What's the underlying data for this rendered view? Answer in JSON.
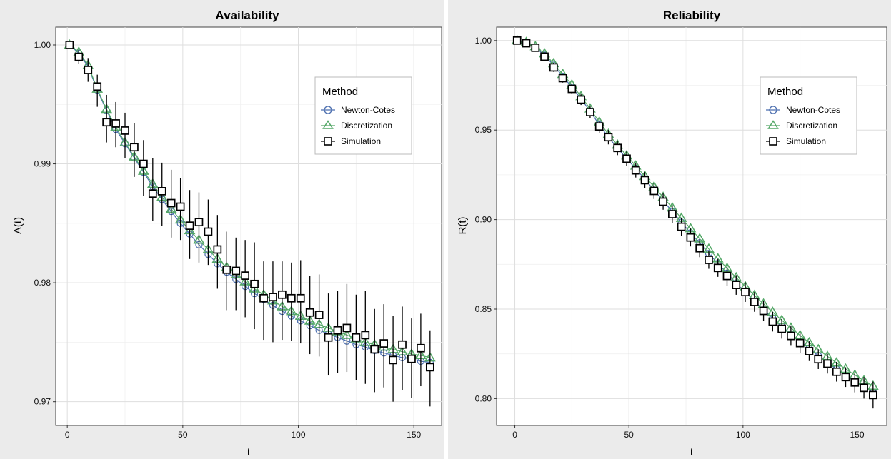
{
  "chart_data": [
    {
      "type": "line",
      "title": "Availability",
      "xlabel": "t",
      "ylabel": "A(t)",
      "xlim": [
        -5,
        162
      ],
      "ylim": [
        0.968,
        1.0015
      ],
      "xticks": [
        0,
        50,
        100,
        150
      ],
      "xtick_labels": [
        "0",
        "50",
        "100",
        "150"
      ],
      "yticks": [
        0.97,
        0.98,
        0.99,
        1.0
      ],
      "ytick_labels": [
        "0.97",
        "0.98",
        "0.99",
        "1.00"
      ],
      "grid": true,
      "legend": {
        "title": "Method",
        "position": "top-right",
        "entries": [
          "Newton-Cotes",
          "Discretization",
          "Simulation"
        ]
      },
      "x": [
        1,
        5,
        9,
        13,
        17,
        21,
        25,
        29,
        33,
        37,
        41,
        45,
        49,
        53,
        57,
        61,
        65,
        69,
        73,
        77,
        81,
        85,
        89,
        93,
        97,
        101,
        105,
        109,
        113,
        117,
        121,
        125,
        129,
        133,
        137,
        141,
        145,
        149,
        153,
        157
      ],
      "series": [
        {
          "name": "Newton-Cotes",
          "values": [
            1.0,
            0.9993,
            0.9982,
            0.9962,
            0.9945,
            0.9929,
            0.9917,
            0.9905,
            0.9893,
            0.9881,
            0.987,
            0.986,
            0.985,
            0.9841,
            0.9832,
            0.9824,
            0.9816,
            0.9809,
            0.9803,
            0.9797,
            0.9791,
            0.9786,
            0.9781,
            0.9776,
            0.9772,
            0.9768,
            0.9764,
            0.976,
            0.9757,
            0.9754,
            0.9751,
            0.9748,
            0.9746,
            0.9743,
            0.9741,
            0.9739,
            0.9737,
            0.9736,
            0.9734,
            0.9733
          ]
        },
        {
          "name": "Discretization",
          "values": [
            1.0,
            0.9994,
            0.9983,
            0.9963,
            0.9946,
            0.9931,
            0.9918,
            0.9906,
            0.9894,
            0.9883,
            0.9872,
            0.9862,
            0.9853,
            0.9844,
            0.9836,
            0.9828,
            0.982,
            0.9813,
            0.9807,
            0.9801,
            0.9795,
            0.979,
            0.9785,
            0.978,
            0.9776,
            0.9772,
            0.9768,
            0.9765,
            0.9762,
            0.9759,
            0.9756,
            0.9753,
            0.975,
            0.9748,
            0.9746,
            0.9744,
            0.9742,
            0.974,
            0.9739,
            0.9737
          ]
        },
        {
          "name": "Simulation",
          "values": [
            1.0,
            0.999,
            0.9979,
            0.9965,
            0.9935,
            0.9934,
            0.9928,
            0.9914,
            0.99,
            0.9875,
            0.9877,
            0.9867,
            0.9864,
            0.9848,
            0.9851,
            0.9843,
            0.9828,
            0.9811,
            0.981,
            0.9806,
            0.9799,
            0.9787,
            0.9788,
            0.979,
            0.9787,
            0.9787,
            0.9775,
            0.9773,
            0.9754,
            0.976,
            0.9762,
            0.9754,
            0.9756,
            0.9744,
            0.9749,
            0.9735,
            0.9748,
            0.9736,
            0.9745,
            0.9729
          ],
          "lower": [
            1.0,
            0.9984,
            0.9969,
            0.9948,
            0.9918,
            0.9914,
            0.9905,
            0.9889,
            0.9873,
            0.9852,
            0.9848,
            0.9838,
            0.9836,
            0.982,
            0.9817,
            0.9815,
            0.9795,
            0.9777,
            0.9777,
            0.9771,
            0.9761,
            0.9752,
            0.975,
            0.9752,
            0.9751,
            0.9749,
            0.974,
            0.9738,
            0.9722,
            0.9724,
            0.9725,
            0.9718,
            0.9715,
            0.9708,
            0.9712,
            0.97,
            0.971,
            0.9703,
            0.9713,
            0.9696
          ],
          "upper": [
            1.0,
            0.9996,
            0.9989,
            0.9975,
            0.9958,
            0.9952,
            0.9943,
            0.9934,
            0.992,
            0.9905,
            0.9901,
            0.9895,
            0.9888,
            0.9878,
            0.9876,
            0.987,
            0.9857,
            0.9843,
            0.9838,
            0.9836,
            0.9834,
            0.9818,
            0.9818,
            0.9818,
            0.9817,
            0.9819,
            0.9806,
            0.9807,
            0.9791,
            0.9793,
            0.9799,
            0.979,
            0.9793,
            0.9778,
            0.9782,
            0.9772,
            0.978,
            0.977,
            0.9774,
            0.976
          ]
        }
      ]
    },
    {
      "type": "line",
      "title": "Reliability",
      "xlabel": "t",
      "ylabel": "R(t)",
      "xlim": [
        -8,
        163
      ],
      "ylim": [
        0.785,
        1.0075
      ],
      "xticks": [
        0,
        50,
        100,
        150
      ],
      "xtick_labels": [
        "0",
        "50",
        "100",
        "150"
      ],
      "yticks": [
        0.8,
        0.85,
        0.9,
        0.95,
        1.0
      ],
      "ytick_labels": [
        "0.80",
        "0.85",
        "0.90",
        "0.95",
        "1.00"
      ],
      "grid": true,
      "legend": {
        "title": "Method",
        "position": "top-right",
        "entries": [
          "Newton-Cotes",
          "Discretization",
          "Simulation"
        ]
      },
      "x": [
        1,
        5,
        9,
        13,
        17,
        21,
        25,
        29,
        33,
        37,
        41,
        45,
        49,
        53,
        57,
        61,
        65,
        69,
        73,
        77,
        81,
        85,
        89,
        93,
        97,
        101,
        105,
        109,
        113,
        117,
        121,
        125,
        129,
        133,
        137,
        141,
        145,
        149,
        153,
        157
      ],
      "series": [
        {
          "name": "Newton-Cotes",
          "values": [
            1.0,
            0.9987,
            0.9962,
            0.9918,
            0.9862,
            0.98,
            0.974,
            0.9675,
            0.9605,
            0.953,
            0.946,
            0.94,
            0.934,
            0.9285,
            0.9225,
            0.9165,
            0.9105,
            0.9045,
            0.8985,
            0.8925,
            0.887,
            0.881,
            0.8755,
            0.87,
            0.8645,
            0.8595,
            0.8545,
            0.8495,
            0.845,
            0.8405,
            0.836,
            0.832,
            0.828,
            0.824,
            0.82,
            0.8165,
            0.813,
            0.8095,
            0.8065,
            0.8035
          ]
        },
        {
          "name": "Discretization",
          "values": [
            1.0,
            0.999,
            0.9967,
            0.9927,
            0.9872,
            0.9812,
            0.9753,
            0.9688,
            0.9619,
            0.9545,
            0.9477,
            0.9417,
            0.9357,
            0.93,
            0.9242,
            0.9183,
            0.9125,
            0.9066,
            0.9008,
            0.895,
            0.8893,
            0.8836,
            0.8782,
            0.8728,
            0.8676,
            0.8626,
            0.8577,
            0.8529,
            0.8483,
            0.8438,
            0.8395,
            0.8353,
            0.8313,
            0.8274,
            0.8236,
            0.82,
            0.8165,
            0.8132,
            0.81,
            0.807
          ]
        },
        {
          "name": "Simulation",
          "values": [
            1.0,
            0.9985,
            0.996,
            0.991,
            0.985,
            0.979,
            0.973,
            0.967,
            0.96,
            0.952,
            0.946,
            0.94,
            0.934,
            0.9275,
            0.922,
            0.916,
            0.91,
            0.903,
            0.896,
            0.89,
            0.884,
            0.8775,
            0.873,
            0.8685,
            0.8635,
            0.8595,
            0.854,
            0.849,
            0.843,
            0.839,
            0.835,
            0.831,
            0.8265,
            0.822,
            0.8195,
            0.815,
            0.812,
            0.809,
            0.806,
            0.802
          ],
          "lower": [
            0.9995,
            0.9975,
            0.9945,
            0.989,
            0.9825,
            0.9765,
            0.97,
            0.964,
            0.9565,
            0.9485,
            0.942,
            0.936,
            0.93,
            0.9235,
            0.9175,
            0.9115,
            0.9055,
            0.898,
            0.891,
            0.885,
            0.879,
            0.8725,
            0.868,
            0.863,
            0.858,
            0.854,
            0.8485,
            0.8435,
            0.8375,
            0.8335,
            0.8295,
            0.8255,
            0.821,
            0.8165,
            0.814,
            0.8095,
            0.8065,
            0.8035,
            0.8,
            0.7945
          ],
          "upper": [
            1.0,
            0.9995,
            0.9975,
            0.993,
            0.9875,
            0.9815,
            0.976,
            0.97,
            0.9635,
            0.9555,
            0.95,
            0.944,
            0.938,
            0.9315,
            0.9265,
            0.9205,
            0.9145,
            0.908,
            0.901,
            0.895,
            0.889,
            0.8825,
            0.878,
            0.874,
            0.869,
            0.865,
            0.8595,
            0.8545,
            0.8485,
            0.8445,
            0.8405,
            0.8365,
            0.832,
            0.8275,
            0.825,
            0.8205,
            0.8175,
            0.8145,
            0.812,
            0.8095
          ]
        }
      ]
    }
  ],
  "colors": {
    "newton_cotes": "#4b6eaf",
    "discretization": "#55a868",
    "simulation": "#000000",
    "panel_bg": "#ebebeb",
    "plot_bg": "#ffffff",
    "grid": "#dedede"
  }
}
